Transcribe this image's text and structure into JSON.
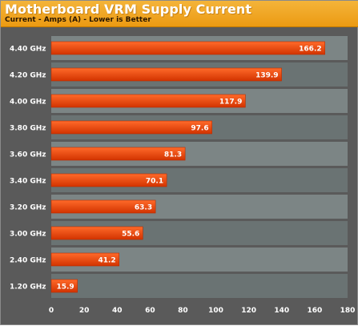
{
  "title": "Motherboard VRM Supply Current",
  "subtitle": "Current - Amps (A) - Lower is Better",
  "colors": {
    "header_top": "#f4b43a",
    "header_bottom": "#ec9a12",
    "plot_bg": "#5a5a5a",
    "band_light": "#7c8585",
    "band_dark": "#6a7373",
    "bar_top": "#ff6a2a",
    "bar_bottom": "#d23300",
    "text": "#ffffff"
  },
  "chart_data": {
    "type": "bar",
    "orientation": "horizontal",
    "categories": [
      "4.40 GHz",
      "4.20 GHz",
      "4.00 GHz",
      "3.80 GHz",
      "3.60 GHz",
      "3.40 GHz",
      "3.20 GHz",
      "3.00 GHz",
      "2.40 GHz",
      "1.20 GHz"
    ],
    "values": [
      166.2,
      139.9,
      117.9,
      97.6,
      81.3,
      70.1,
      63.3,
      55.6,
      41.2,
      15.9
    ],
    "value_labels": [
      "166.2",
      "139.9",
      "117.9",
      "97.6",
      "81.3",
      "70.1",
      "63.3",
      "55.6",
      "41.2",
      "15.9"
    ],
    "title": "Motherboard VRM Supply Current",
    "subtitle": "Current - Amps (A) - Lower is Better",
    "xlabel": "",
    "ylabel": "",
    "xlim": [
      0,
      180
    ],
    "xticks": [
      0,
      20,
      40,
      60,
      80,
      100,
      120,
      140,
      160,
      180
    ],
    "grid": false,
    "legend": "none"
  }
}
